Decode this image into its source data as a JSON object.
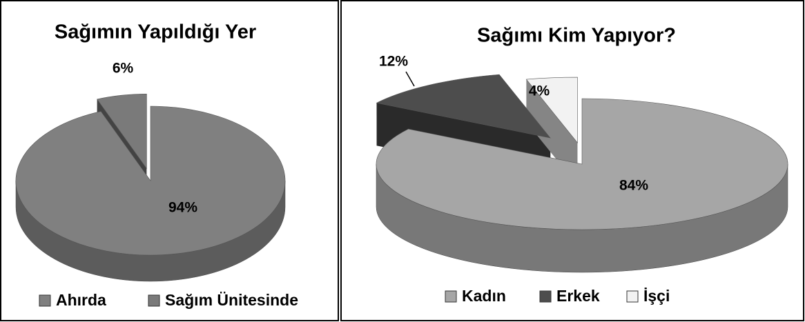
{
  "chart_data": [
    {
      "type": "pie3d",
      "title": "Sağımın Yapıldığı Yer",
      "categories": [
        "Ahırda",
        "Sağım Ünitesinde"
      ],
      "values": [
        94,
        6
      ],
      "value_labels": [
        "94%",
        "6%"
      ],
      "colors": [
        "#808080",
        "#7a7a7a"
      ],
      "legend": "bottom"
    },
    {
      "type": "pie3d",
      "title": "Sağımı Kim Yapıyor?",
      "categories": [
        "Kadın",
        "Erkek",
        "İşçi"
      ],
      "values": [
        84,
        12,
        4
      ],
      "value_labels": [
        "84%",
        "12%",
        "4%"
      ],
      "colors": [
        "#a6a6a6",
        "#4d4d4d",
        "#f2f2f2"
      ],
      "legend": "bottom"
    }
  ]
}
